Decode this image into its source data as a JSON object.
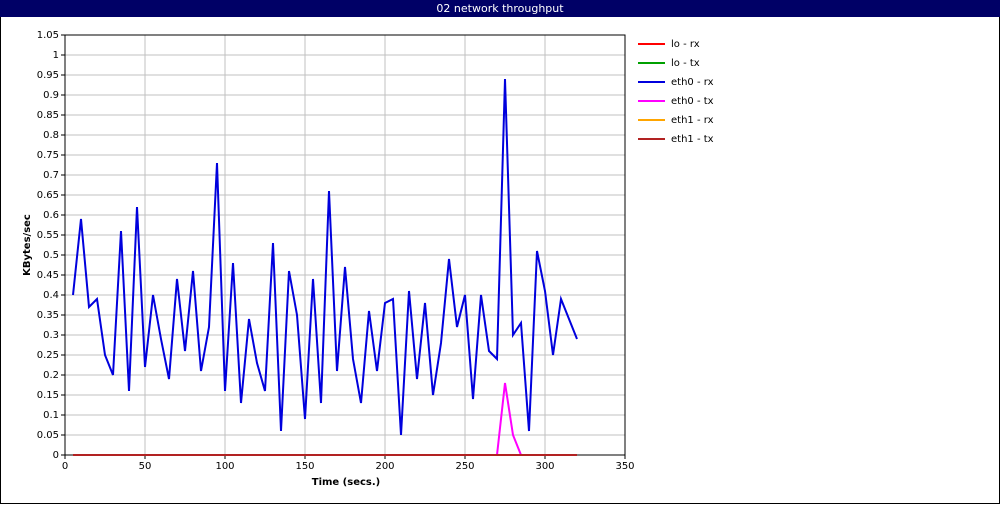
{
  "chart_data": {
    "type": "line",
    "title": "02 network throughput",
    "x_label": "Time (secs.)",
    "y_label": "KBytes/sec",
    "x": [
      5,
      10,
      15,
      20,
      25,
      30,
      35,
      40,
      45,
      50,
      55,
      60,
      65,
      70,
      75,
      80,
      85,
      90,
      95,
      100,
      105,
      110,
      115,
      120,
      125,
      130,
      135,
      140,
      145,
      150,
      155,
      160,
      165,
      170,
      175,
      180,
      185,
      190,
      195,
      200,
      205,
      210,
      215,
      220,
      225,
      230,
      235,
      240,
      245,
      250,
      255,
      260,
      265,
      270,
      275,
      280,
      285,
      290,
      295,
      300,
      305,
      310,
      315,
      320
    ],
    "series": [
      {
        "name": "lo - rx",
        "color": "#ff0000",
        "values": [
          0,
          0,
          0,
          0,
          0,
          0,
          0,
          0,
          0,
          0,
          0,
          0,
          0,
          0,
          0,
          0,
          0,
          0,
          0,
          0,
          0,
          0,
          0,
          0,
          0,
          0,
          0,
          0,
          0,
          0,
          0,
          0,
          0,
          0,
          0,
          0,
          0,
          0,
          0,
          0,
          0,
          0,
          0,
          0,
          0,
          0,
          0,
          0,
          0,
          0,
          0,
          0,
          0,
          0,
          0,
          0,
          0,
          0,
          0,
          0,
          0,
          0,
          0,
          0
        ]
      },
      {
        "name": "lo - tx",
        "color": "#00a000",
        "values": [
          0,
          0,
          0,
          0,
          0,
          0,
          0,
          0,
          0,
          0,
          0,
          0,
          0,
          0,
          0,
          0,
          0,
          0,
          0,
          0,
          0,
          0,
          0,
          0,
          0,
          0,
          0,
          0,
          0,
          0,
          0,
          0,
          0,
          0,
          0,
          0,
          0,
          0,
          0,
          0,
          0,
          0,
          0,
          0,
          0,
          0,
          0,
          0,
          0,
          0,
          0,
          0,
          0,
          0,
          0,
          0,
          0,
          0,
          0,
          0,
          0,
          0,
          0,
          0
        ]
      },
      {
        "name": "eth0 - rx",
        "color": "#0000dd",
        "values": [
          0.4,
          0.59,
          0.37,
          0.39,
          0.25,
          0.2,
          0.56,
          0.16,
          0.62,
          0.22,
          0.4,
          0.29,
          0.19,
          0.44,
          0.26,
          0.46,
          0.21,
          0.32,
          0.73,
          0.16,
          0.48,
          0.13,
          0.34,
          0.23,
          0.16,
          0.53,
          0.06,
          0.46,
          0.35,
          0.09,
          0.44,
          0.13,
          0.66,
          0.21,
          0.47,
          0.24,
          0.13,
          0.36,
          0.21,
          0.38,
          0.39,
          0.05,
          0.41,
          0.19,
          0.38,
          0.15,
          0.28,
          0.49,
          0.32,
          0.4,
          0.14,
          0.4,
          0.26,
          0.24,
          0.94,
          0.3,
          0.33,
          0.06,
          0.51,
          0.41,
          0.25,
          0.39,
          0.34,
          0.29
        ]
      },
      {
        "name": "eth0 - tx",
        "color": "#ff00ff",
        "values": [
          0,
          0,
          0,
          0,
          0,
          0,
          0,
          0,
          0,
          0,
          0,
          0,
          0,
          0,
          0,
          0,
          0,
          0,
          0,
          0,
          0,
          0,
          0,
          0,
          0,
          0,
          0,
          0,
          0,
          0,
          0,
          0,
          0,
          0,
          0,
          0,
          0,
          0,
          0,
          0,
          0,
          0,
          0,
          0,
          0,
          0,
          0,
          0,
          0,
          0,
          0,
          0,
          0,
          0,
          0.18,
          0.05,
          0,
          0,
          0,
          0,
          0,
          0,
          0,
          0
        ]
      },
      {
        "name": "eth1 - rx",
        "color": "#ffa500",
        "values": [
          0,
          0,
          0,
          0,
          0,
          0,
          0,
          0,
          0,
          0,
          0,
          0,
          0,
          0,
          0,
          0,
          0,
          0,
          0,
          0,
          0,
          0,
          0,
          0,
          0,
          0,
          0,
          0,
          0,
          0,
          0,
          0,
          0,
          0,
          0,
          0,
          0,
          0,
          0,
          0,
          0,
          0,
          0,
          0,
          0,
          0,
          0,
          0,
          0,
          0,
          0,
          0,
          0,
          0,
          0,
          0,
          0,
          0,
          0,
          0,
          0,
          0,
          0,
          0
        ]
      },
      {
        "name": "eth1 - tx",
        "color": "#b22222",
        "values": [
          0,
          0,
          0,
          0,
          0,
          0,
          0,
          0,
          0,
          0,
          0,
          0,
          0,
          0,
          0,
          0,
          0,
          0,
          0,
          0,
          0,
          0,
          0,
          0,
          0,
          0,
          0,
          0,
          0,
          0,
          0,
          0,
          0,
          0,
          0,
          0,
          0,
          0,
          0,
          0,
          0,
          0,
          0,
          0,
          0,
          0,
          0,
          0,
          0,
          0,
          0,
          0,
          0,
          0,
          0,
          0,
          0,
          0,
          0,
          0,
          0,
          0,
          0,
          0
        ]
      }
    ],
    "xlim": [
      0,
      350
    ],
    "xticks": [
      0,
      50,
      100,
      150,
      200,
      250,
      300,
      350
    ],
    "ylim": [
      0,
      1.05
    ],
    "yticks": [
      0,
      0.05,
      0.1,
      0.15,
      0.2,
      0.25,
      0.3,
      0.35,
      0.4,
      0.45,
      0.5,
      0.55,
      0.6,
      0.65,
      0.7,
      0.75,
      0.8,
      0.85,
      0.9,
      0.95,
      1,
      1.05
    ],
    "grid": true
  }
}
